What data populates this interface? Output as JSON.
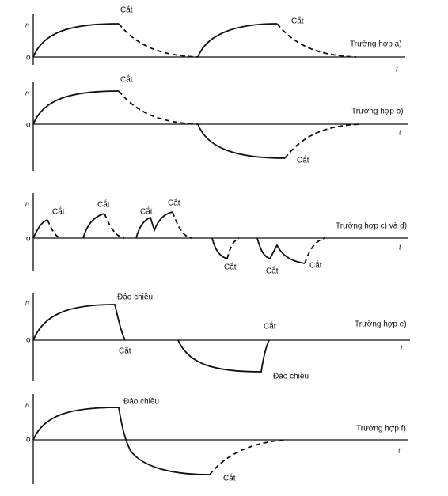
{
  "panels": [
    {
      "axis_y": "n",
      "origin": "o",
      "axis_x": "t",
      "case": "Trường hợp a)",
      "labels": [
        "Cắt",
        "Cắt"
      ]
    },
    {
      "axis_y": "n",
      "origin": "o",
      "axis_x": "t",
      "case": "Trường hợp b)",
      "labels": [
        "Cắt",
        "Cắt"
      ]
    },
    {
      "axis_y": "n",
      "origin": "o",
      "axis_x": "t",
      "case": "Trường hợp c) và d)",
      "labels": [
        "Cắt",
        "Cắt",
        "Cắt",
        "Cắt",
        "Cắt",
        "Cắt",
        "Cắt"
      ]
    },
    {
      "axis_y": "n",
      "origin": "o",
      "axis_x": "t",
      "case": "Trường hợp e)",
      "labels": [
        "Đảo chiều",
        "Cắt",
        "Cắt",
        "Đảo chiều"
      ]
    },
    {
      "axis_y": "n",
      "origin": "o",
      "axis_x": "t",
      "case": "Trường hợp f)",
      "labels": [
        "Đảo chiều",
        "Cắt"
      ]
    }
  ]
}
